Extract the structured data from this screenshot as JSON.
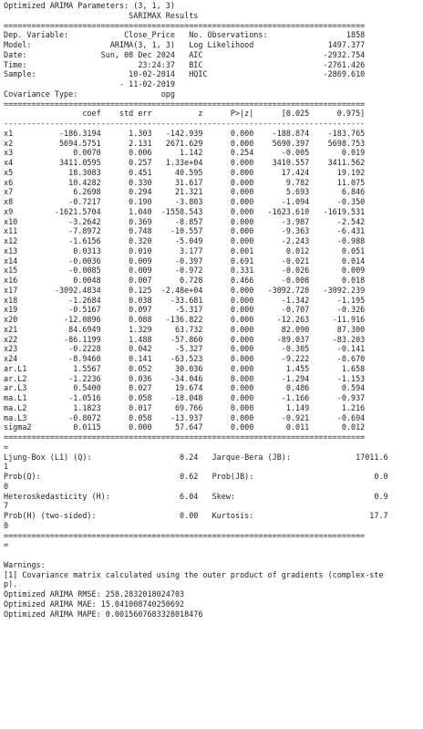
{
  "output": {
    "header": "Optimized ARIMA Parameters: (3, 1, 3)",
    "title": "                           SARIMAX Results",
    "sep_double": "==============================================================================",
    "sep_single": "------------------------------------------------------------------------------",
    "info": [
      "Dep. Variable:            Close_Price   No. Observations:                 1858",
      "Model:                 ARIMA(3, 1, 3)   Log Likelihood                1497.377",
      "Date:                Sun, 08 Dec 2024   AIC                          -2932.754",
      "Time:                        23:24:37   BIC                          -2761.426",
      "Sample:                    10-02-2014   HQIC                         -2869.610",
      "                         - 11-02-2019",
      "Covariance Type:                  opg"
    ],
    "coef_header": "                 coef    std err          z      P>|z|      [0.025      0.975]",
    "coef_rows": [
      "x1          -186.3194      1.303   -142.939      0.000    -188.874    -183.765",
      "x2          5694.5751      2.131   2671.629      0.000    5690.397    5698.753",
      "x3             0.0070      0.006      1.142      0.254      -0.005       0.019",
      "x4          3411.0595      0.257   1.33e+04      0.000    3410.557    3411.562",
      "x5            18.3083      0.451     40.595      0.000      17.424      19.192",
      "x6            10.4282      0.330     31.617      0.000       9.782      11.075",
      "x7             6.2698      0.294     21.321      0.000       5.693       6.846",
      "x8            -0.7217      0.190     -3.803      0.000      -1.094      -0.350",
      "x9         -1621.5704      1.040  -1558.543      0.000   -1623.610   -1619.531",
      "x10           -3.2642      0.369     -8.857      0.000      -3.987      -2.542",
      "x11           -7.8972      0.748    -10.557      0.000      -9.363      -6.431",
      "x12           -1.6156      0.320     -5.049      0.000      -2.243      -0.988",
      "x13            0.0313      0.010      3.177      0.001       0.012       0.051",
      "x14           -0.0036      0.009     -0.397      0.691      -0.021       0.014",
      "x15           -0.0085      0.009     -0.972      0.331      -0.026       0.009",
      "x16            0.0048      0.007      0.728      0.466      -0.008       0.018",
      "x17        -3092.4834      0.125  -2.48e+04      0.000   -3092.728   -3092.239",
      "x18           -1.2684      0.038    -33.681      0.000      -1.342      -1.195",
      "x19           -0.5167      0.097     -5.317      0.000      -0.707      -0.326",
      "x20          -12.0896      0.088   -136.822      0.000     -12.263     -11.916",
      "x21           84.6949      1.329     63.732      0.000      82.090      87.300",
      "x22          -86.1199      1.488    -57.860      0.000     -89.037     -83.203",
      "x23           -0.2228      0.042     -5.327      0.000      -0.305      -0.141",
      "x24           -8.9460      0.141    -63.523      0.000      -9.222      -8.670",
      "ar.L1          1.5567      0.052     30.036      0.000       1.455       1.658",
      "ar.L2         -1.2236      0.036    -34.046      0.000      -1.294      -1.153",
      "ar.L3          0.5400      0.027     19.674      0.000       0.486       0.594",
      "ma.L1         -1.0516      0.058    -18.048      0.000      -1.166      -0.937",
      "ma.L2          1.1823      0.017     69.766      0.000       1.149       1.216",
      "ma.L3         -0.8072      0.058    -13.937      0.000      -0.921      -0.694",
      "sigma2         0.0115      0.000     57.647      0.000       0.011       0.012"
    ],
    "wrap_sep": "==============================================================================",
    "wrap_tail": "=",
    "diag_lines": [
      "Ljung-Box (L1) (Q):                   0.24   Jarque-Bera (JB):              17011.6",
      "1",
      "Prob(Q):                              0.62   Prob(JB):                          0.0",
      "0",
      "Heteroskedasticity (H):               6.04   Skew:                              0.9",
      "7",
      "Prob(H) (two-sided):                  0.00   Kurtosis:                         17.7",
      "0"
    ],
    "warnings_title": "Warnings:",
    "warnings": [
      "[1] Covariance matrix calculated using the outer product of gradients (complex-ste",
      "p)."
    ],
    "metrics": [
      "Optimized ARIMA RMSE: 258.2832018024703",
      "Optimized ARIMA MAE: 15.041008740250692",
      "Optimized ARIMA MAPE: 0.0015607683328018476"
    ]
  }
}
